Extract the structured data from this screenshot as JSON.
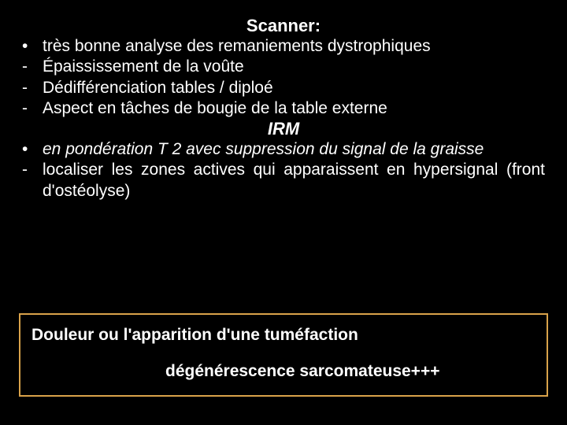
{
  "colors": {
    "background": "#000000",
    "text": "#ffffff",
    "callout_border": "#d9a24a"
  },
  "section1": {
    "heading": "Scanner:",
    "bullet1_marker": "•",
    "bullet1_text": "très bonne analyse des remaniements dystrophiques",
    "dash1_marker": "-",
    "dash1_text": "Épaississement de la voûte",
    "dash2_marker": "-",
    "dash2_text": "Dédifférenciation tables / diploé",
    "dash3_marker": "-",
    "dash3_text": "Aspect en tâches de bougie de la table externe"
  },
  "section2": {
    "heading": "IRM",
    "bullet1_marker": "•",
    "bullet1_text": "en pondération T 2 avec suppression du signal de la graisse",
    "dash1_marker": "-",
    "dash1_text": "localiser les zones actives qui apparaissent en hypersignal (front d'ostéolyse)"
  },
  "callout": {
    "line1": "Douleur ou l'apparition d'une tuméfaction",
    "line2": "dégénérescence sarcomateuse+++"
  }
}
